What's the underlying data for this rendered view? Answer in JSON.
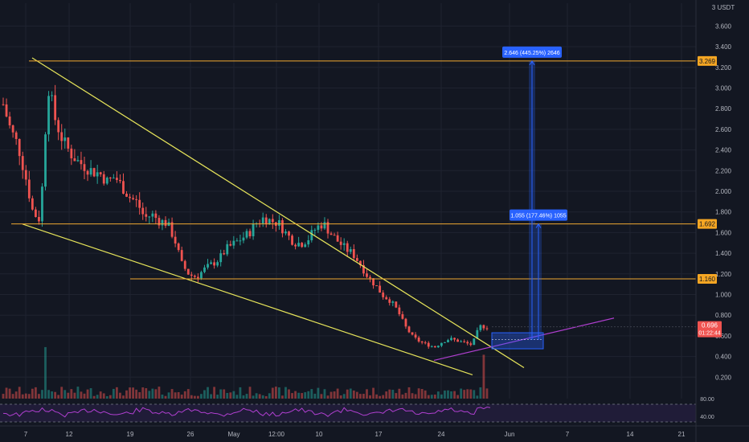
{
  "header": {
    "currency_label": "3 USDT"
  },
  "colors": {
    "background": "#131722",
    "grid": "#1f2330",
    "axis_text": "#b2b5be",
    "candle_up": "#26a69a",
    "candle_down": "#ef5350",
    "trendline": "#e6e45a",
    "level_line": "#f0a830",
    "level_badge": "#f5a623",
    "rsi_line": "#b03fd0",
    "rsi_band": "#2a1f47",
    "measure_box": "#2962ff",
    "price_badge": "#f05350"
  },
  "chart_data": {
    "type": "candlestick",
    "pair_currency": "USDT",
    "x_ticks": [
      "7",
      "12",
      "19",
      "26",
      "May",
      "12:00",
      "10",
      "17",
      "24",
      "Jun",
      "7",
      "14",
      "21"
    ],
    "y_ticks": [
      "3.600",
      "3.400",
      "3.200",
      "3.000",
      "2.800",
      "2.600",
      "2.400",
      "2.200",
      "2.000",
      "1.800",
      "1.600",
      "1.400",
      "1.200",
      "1.000",
      "0.800",
      "0.600",
      "0.400",
      "0.200"
    ],
    "ylim": [
      0.0,
      3.7
    ],
    "price_levels": [
      {
        "label": "3.269",
        "value": 3.269
      },
      {
        "label": "1.692",
        "value": 1.692
      },
      {
        "label": "1.160",
        "value": 1.16
      }
    ],
    "current_price": {
      "label": "0.696",
      "countdown": "01:22:44",
      "value": 0.696
    },
    "measurements": [
      {
        "label": "2.646 (445.25%) 2646",
        "target": 3.269
      },
      {
        "label": "1.055 (177.46%) 1055",
        "target": 1.692
      }
    ],
    "rsi": {
      "upper_label": "80.00",
      "lower_label": "40.00",
      "upper": 80,
      "lower": 40
    },
    "price_closes": [
      2.85,
      2.6,
      2.45,
      2.15,
      1.8,
      1.73,
      3.05,
      2.7,
      2.5,
      2.38,
      2.3,
      2.25,
      2.2,
      2.18,
      2.1,
      2.15,
      2.05,
      1.95,
      1.9,
      1.75,
      1.78,
      1.72,
      1.7,
      1.55,
      1.3,
      1.2,
      1.18,
      1.25,
      1.3,
      1.35,
      1.45,
      1.5,
      1.55,
      1.6,
      1.7,
      1.75,
      1.72,
      1.7,
      1.6,
      1.52,
      1.5,
      1.55,
      1.65,
      1.7,
      1.6,
      1.52,
      1.45,
      1.4,
      1.3,
      1.18,
      1.1,
      1.0,
      0.95,
      0.85,
      0.7,
      0.6,
      0.55,
      0.52,
      0.5,
      0.55,
      0.58,
      0.56,
      0.54,
      0.52,
      0.7,
      0.696
    ]
  }
}
